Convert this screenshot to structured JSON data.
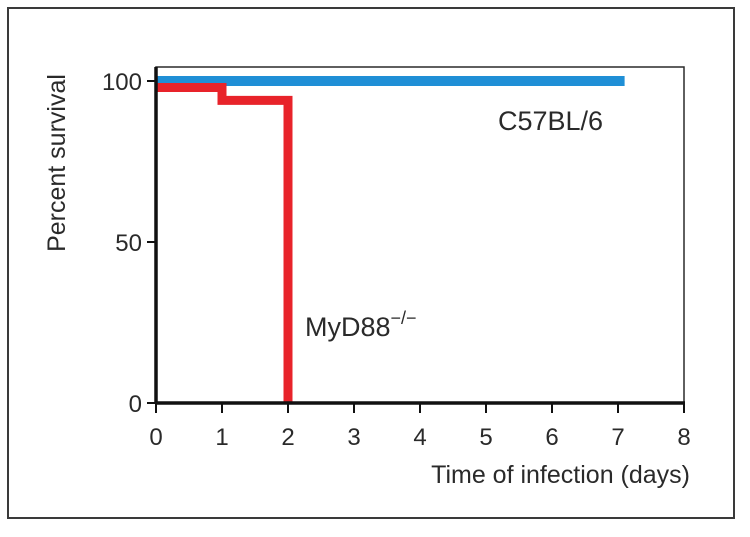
{
  "chart_data": {
    "type": "line",
    "step": true,
    "xlabel": "Time of infection (days)",
    "ylabel": "Percent survival",
    "xlim": [
      0,
      8
    ],
    "ylim": [
      0,
      100
    ],
    "xticks": [
      0,
      1,
      2,
      3,
      4,
      5,
      6,
      7,
      8
    ],
    "yticks": [
      0,
      50,
      100
    ],
    "grid": false,
    "series": [
      {
        "name": "C57BL/6",
        "color": "#1f8fd6",
        "x": [
          0,
          7.1
        ],
        "y": [
          100,
          100
        ]
      },
      {
        "name": "MyD88",
        "name_superscript": "−/−",
        "color": "#e8232a",
        "x": [
          0,
          1,
          2,
          2
        ],
        "y": [
          98,
          94,
          94,
          0
        ]
      }
    ]
  }
}
